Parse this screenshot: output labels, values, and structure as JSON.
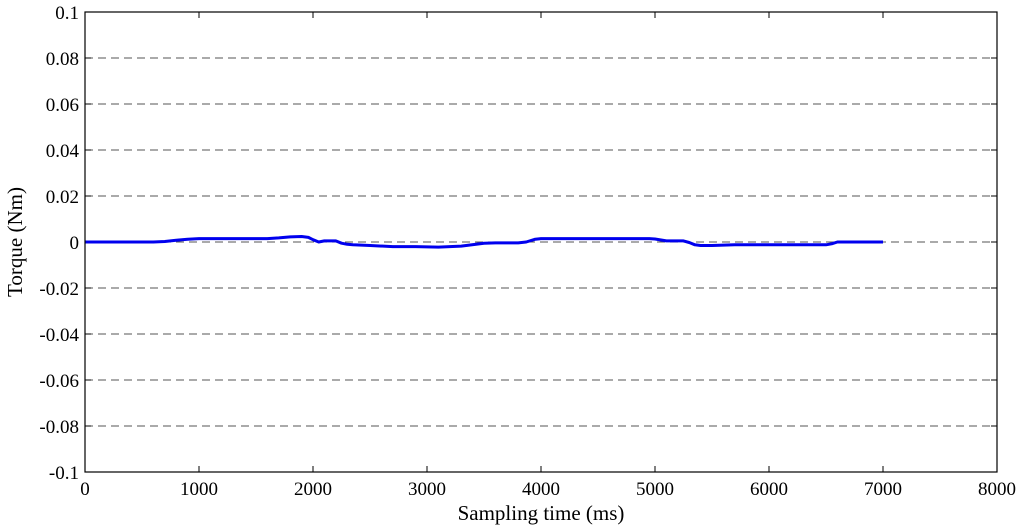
{
  "chart_data": {
    "type": "line",
    "xlabel": "Sampling time (ms)",
    "ylabel": "Torque (Nm)",
    "xlim": [
      0,
      8000
    ],
    "ylim": [
      -0.1,
      0.1
    ],
    "xticks": [
      0,
      1000,
      2000,
      3000,
      4000,
      5000,
      6000,
      7000,
      8000
    ],
    "yticks": [
      0.1,
      0.08,
      0.06,
      0.04,
      0.02,
      0,
      -0.02,
      -0.04,
      -0.06,
      -0.08,
      -0.1
    ],
    "xtick_labels": [
      "0",
      "1000",
      "2000",
      "3000",
      "4000",
      "5000",
      "6000",
      "7000",
      "8000"
    ],
    "ytick_labels": [
      "0.1",
      "0.08",
      "0.06",
      "0.04",
      "0.02",
      "0",
      "-0.02",
      "-0.04",
      "-0.06",
      "-0.08",
      "-0.1"
    ],
    "grid": "horizontal dashed",
    "series": [
      {
        "color": "#0000ee",
        "x": [
          0,
          300,
          600,
          700,
          800,
          900,
          1000,
          1200,
          1400,
          1600,
          1700,
          1800,
          1900,
          1960,
          2000,
          2050,
          2100,
          2150,
          2200,
          2250,
          2300,
          2350,
          2500,
          2700,
          2900,
          3100,
          3300,
          3500,
          3600,
          3800,
          3870,
          3950,
          4000,
          4200,
          4400,
          4600,
          4800,
          4950,
          5000,
          5100,
          5150,
          5250,
          5300,
          5350,
          5400,
          5500,
          5700,
          5900,
          6100,
          6300,
          6500,
          6550,
          6600,
          6800,
          7000
        ],
        "y": [
          0.0,
          0.0,
          0.0,
          0.0002,
          0.0008,
          0.0012,
          0.0015,
          0.0015,
          0.0015,
          0.0015,
          0.0018,
          0.0022,
          0.0024,
          0.002,
          0.001,
          0.0,
          0.0005,
          0.0005,
          0.0005,
          -0.0005,
          -0.001,
          -0.0012,
          -0.0015,
          -0.002,
          -0.002,
          -0.0022,
          -0.0018,
          -0.0005,
          -0.0004,
          -0.0004,
          0.0,
          0.0012,
          0.0015,
          0.0015,
          0.0015,
          0.0015,
          0.0015,
          0.0015,
          0.0013,
          0.0005,
          0.0005,
          0.0005,
          -0.0002,
          -0.0012,
          -0.0015,
          -0.0015,
          -0.0012,
          -0.0012,
          -0.0012,
          -0.0012,
          -0.0012,
          -0.0008,
          0.0,
          0.0,
          0.0
        ]
      }
    ]
  }
}
